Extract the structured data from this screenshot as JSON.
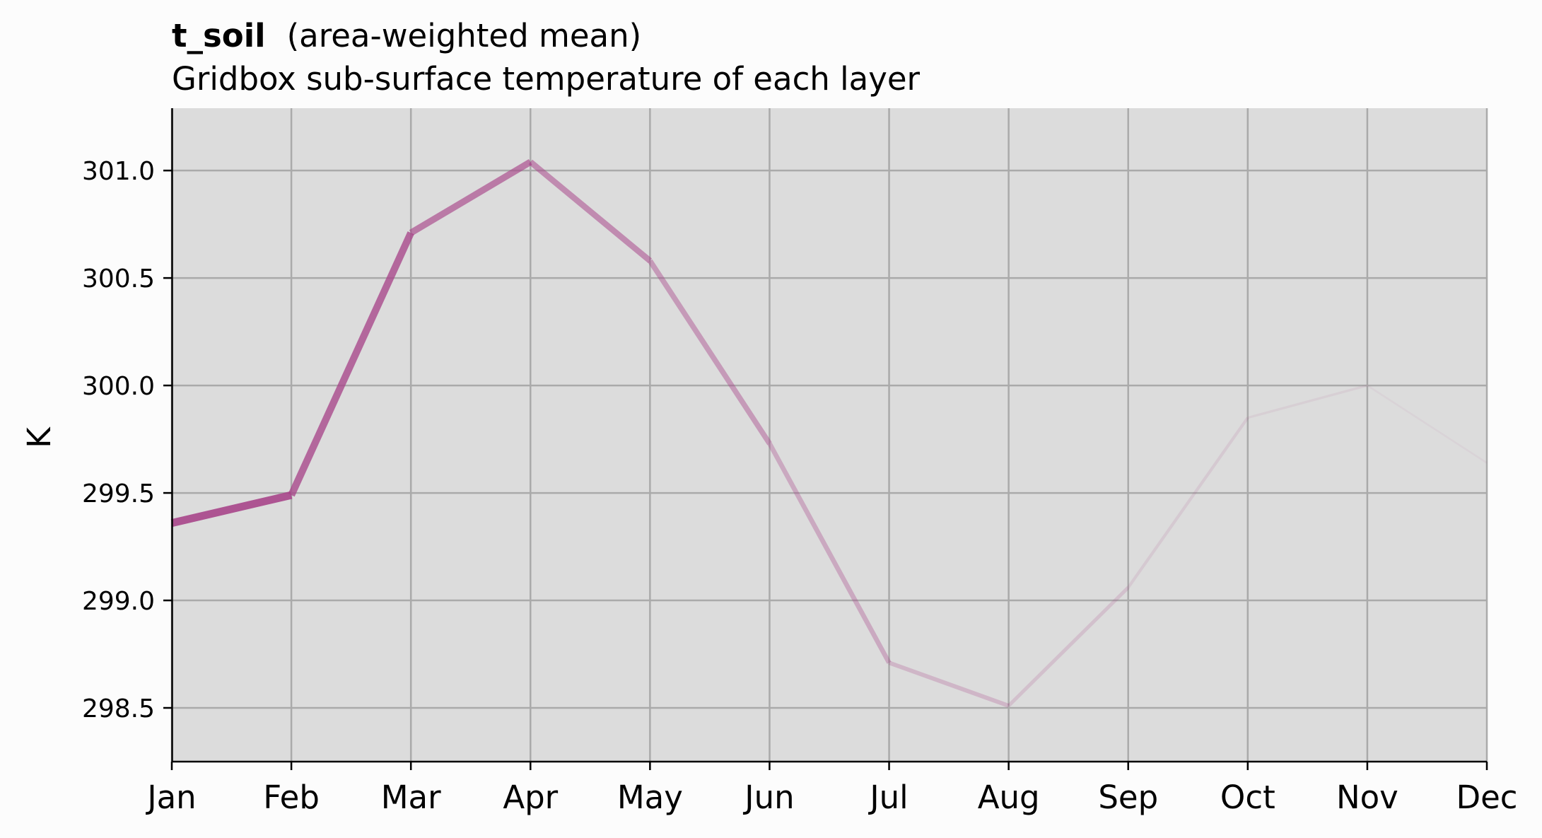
{
  "chart_data": {
    "type": "line",
    "title": "t_soil",
    "title_suffix": "(area-weighted mean)",
    "subtitle": "Gridbox sub-surface temperature of each layer",
    "xlabel": "",
    "ylabel": "K",
    "categories": [
      "Jan",
      "Feb",
      "Mar",
      "Apr",
      "May",
      "Jun",
      "Jul",
      "Aug",
      "Sep",
      "Oct",
      "Nov",
      "Dec"
    ],
    "values": [
      299.36,
      299.49,
      300.71,
      301.04,
      300.58,
      299.73,
      298.71,
      298.51,
      299.06,
      299.85,
      300.0,
      299.64
    ],
    "ylim": [
      298.25,
      301.29
    ],
    "yticks": [
      "298.5",
      "299.0",
      "299.5",
      "300.0",
      "300.5",
      "301.0"
    ],
    "grid": true,
    "line_color": "#a8468a",
    "plot_background": "#dcdcdc",
    "grid_color": "#aaaaaa"
  }
}
